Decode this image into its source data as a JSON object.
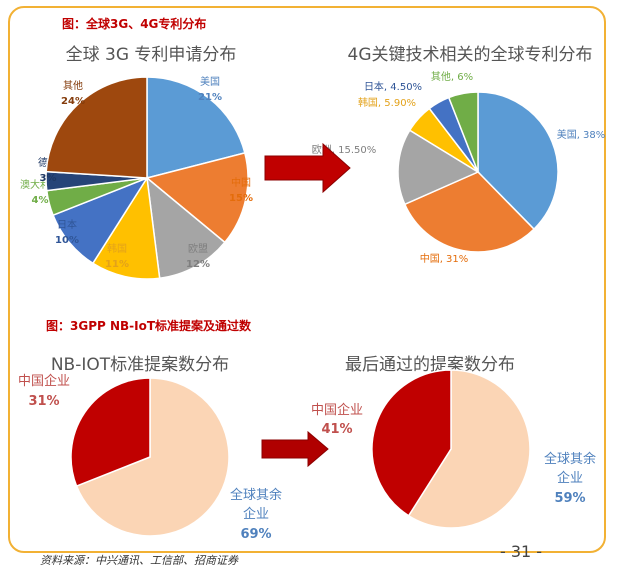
{
  "figure1_title": "图：全球3G、4G专利分布",
  "figure2_title": "图：3GPP NB-IoT标准提案及通过数",
  "source": "资料来源：中兴通讯、工信部、招商证券",
  "page_number": "- 31 -",
  "chart_data": [
    {
      "type": "pie",
      "title": "全球 3G 专利申请分布",
      "slices": [
        {
          "label": "美国",
          "value_label": "21%",
          "value": 21,
          "color": "#5b9bd5",
          "text_color": "#4f81bd"
        },
        {
          "label": "中国",
          "value_label": "15%",
          "value": 15,
          "color": "#ed7d31",
          "text_color": "#e46c0a"
        },
        {
          "label": "欧盟",
          "value_label": "12%",
          "value": 12,
          "color": "#a5a5a5",
          "text_color": "#7f7f7f"
        },
        {
          "label": "韩国",
          "value_label": "11%",
          "value": 11,
          "color": "#ffc000",
          "text_color": "#e3a21a"
        },
        {
          "label": "日本",
          "value_label": "10%",
          "value": 10,
          "color": "#4472c4",
          "text_color": "#2f5597"
        },
        {
          "label": "澳大利亚",
          "value_label": "4%",
          "value": 4,
          "color": "#70ad47",
          "text_color": "#70ad47"
        },
        {
          "label": "德国",
          "value_label": "3%",
          "value": 3,
          "color": "#264478",
          "text_color": "#1f3864"
        },
        {
          "label": "其他",
          "value_label": "24%",
          "value": 24,
          "color": "#9e480e",
          "text_color": "#843c0c"
        }
      ]
    },
    {
      "type": "pie",
      "title": "4G关键技术相关的全球专利分布",
      "slices": [
        {
          "label": "美国, 38%",
          "value": 38,
          "color": "#5b9bd5",
          "text_color": "#4f81bd"
        },
        {
          "label": "中国, 31%",
          "value": 31,
          "color": "#ed7d31",
          "text_color": "#e46c0a"
        },
        {
          "label": "欧洲, 15.50%",
          "value": 15.5,
          "color": "#a5a5a5",
          "text_color": "#7f7f7f"
        },
        {
          "label": "韩国, 5.90%",
          "value": 5.9,
          "color": "#ffc000",
          "text_color": "#e3a21a"
        },
        {
          "label": "日本, 4.50%",
          "value": 4.5,
          "color": "#4472c4",
          "text_color": "#2f5597"
        },
        {
          "label": "其他, 6%",
          "value": 6,
          "color": "#70ad47",
          "text_color": "#70ad47"
        }
      ]
    },
    {
      "type": "pie",
      "title": "NB-IOT标准提案数分布",
      "slices": [
        {
          "label": "全球其余 企业",
          "value_label": "69%",
          "value": 69,
          "color": "#fbd5b5",
          "text_color": "#4f81bd"
        },
        {
          "label": "中国企业",
          "value_label": "31%",
          "value": 31,
          "color": "#c00000",
          "text_color": "#c0504d"
        }
      ]
    },
    {
      "type": "pie",
      "title": "最后通过的提案数分布",
      "slices": [
        {
          "label": "全球其余 企业",
          "value_label": "59%",
          "value": 59,
          "color": "#fbd5b5",
          "text_color": "#4f81bd"
        },
        {
          "label": "中国企业",
          "value_label": "41%",
          "value": 41,
          "color": "#c00000",
          "text_color": "#c0504d"
        }
      ]
    }
  ]
}
